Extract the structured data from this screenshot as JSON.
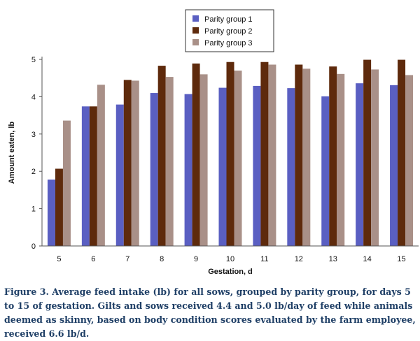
{
  "chart_data": {
    "type": "bar",
    "xlabel": "Gestation, d",
    "ylabel": "Amount eaten, lb",
    "ylim": [
      0,
      5
    ],
    "yticks": [
      0,
      1,
      2,
      3,
      4,
      5
    ],
    "grid": false,
    "legend_position": "top-center",
    "categories": [
      "5",
      "6",
      "7",
      "8",
      "9",
      "10",
      "11",
      "12",
      "13",
      "14",
      "15"
    ],
    "series": [
      {
        "name": "Parity group 1",
        "color": "#5a5fc2",
        "values": [
          1.78,
          3.74,
          3.79,
          4.1,
          4.07,
          4.24,
          4.29,
          4.23,
          4.01,
          4.36,
          4.31
        ]
      },
      {
        "name": "Parity group 2",
        "color": "#5e2a0c",
        "values": [
          2.07,
          3.74,
          4.45,
          4.83,
          4.89,
          4.93,
          4.93,
          4.86,
          4.81,
          4.99,
          4.99
        ]
      },
      {
        "name": "Parity group 3",
        "color": "#a99088",
        "values": [
          3.36,
          4.32,
          4.43,
          4.53,
          4.6,
          4.7,
          4.86,
          4.75,
          4.61,
          4.73,
          4.58
        ]
      }
    ]
  },
  "caption": "Figure 3. Average feed intake (lb) for all sows, grouped by parity group, for days 5 to 15 of gestation. Gilts and sows received 4.4 and 5.0 lb/day of feed while animals deemed as skinny, based on body condition scores evaluated by the farm employee, received 6.6 lb/d."
}
